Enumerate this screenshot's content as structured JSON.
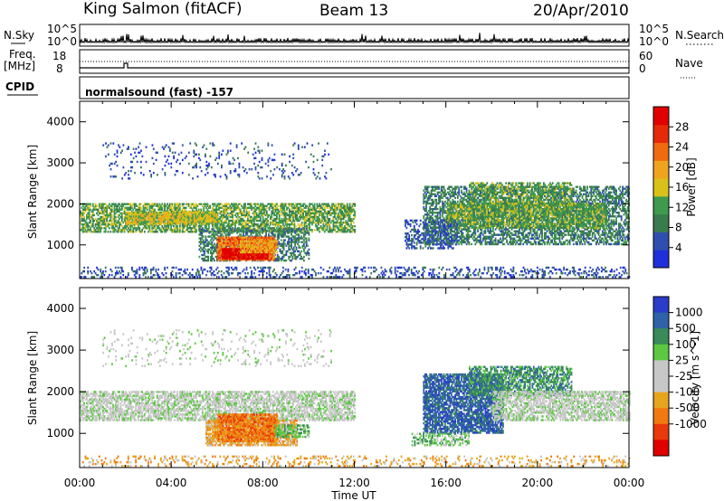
{
  "header": {
    "station": "King Salmon (fitACF)",
    "beam": "Beam 13",
    "date": "20/Apr/2010"
  },
  "top_panels": {
    "nsky_label": "N.Sky",
    "nsky_ticks": [
      "10^5",
      "10^0"
    ],
    "nsearch_label": "N.Search",
    "nsearch_ticks": [
      "10^5",
      "10^0"
    ],
    "freq_label": "Freq.",
    "freq_unit": "[MHz]",
    "freq_ticks": [
      "18",
      "8"
    ],
    "nave_label": "Nave",
    "nave_ticks": [
      "60",
      "0"
    ],
    "cpid_label": "CPID",
    "cpid_text": "normalsound (fast) -157"
  },
  "colors": {
    "power_scale": [
      "#1f2fd9",
      "#2f4fb0",
      "#3a7a4f",
      "#3f9a4e",
      "#d8c21a",
      "#f0a41e",
      "#f06a10",
      "#e52a0a",
      "#e00000"
    ],
    "velocity_scale": [
      "#2a3cc8",
      "#2f62a8",
      "#3a8a5a",
      "#5cc842",
      "#c7c7c7",
      "#c7c7c7",
      "#e7a51e",
      "#f07a10",
      "#e83a0a",
      "#e00000"
    ]
  },
  "chart_data": [
    {
      "type": "heatmap",
      "title": "Power",
      "xlabel": "Time UT",
      "ylabel": "Slant Range [km]",
      "x_ticks": [
        "00:00",
        "04:00",
        "08:00",
        "12:00",
        "16:00",
        "20:00",
        "00:00"
      ],
      "xlim_hours": [
        0,
        24
      ],
      "y_ticks": [
        1000,
        2000,
        3000,
        4000
      ],
      "ylim": [
        180,
        4500
      ],
      "colorbar": {
        "label": "Power [dB]",
        "ticks": [
          4,
          8,
          12,
          16,
          20,
          24,
          28
        ],
        "range": [
          0,
          32
        ]
      },
      "regions": [
        {
          "t0": 0.0,
          "t1": 12.0,
          "r0": 1300,
          "r1": 2000,
          "dens": 0.65,
          "lev": 3
        },
        {
          "t0": 2.0,
          "t1": 6.0,
          "r0": 1500,
          "r1": 1800,
          "dens": 0.8,
          "lev": 4
        },
        {
          "t0": 5.2,
          "t1": 10.0,
          "r0": 600,
          "r1": 1400,
          "dens": 0.5,
          "lev": 2
        },
        {
          "t0": 6.0,
          "t1": 8.5,
          "r0": 620,
          "r1": 1200,
          "dens": 0.9,
          "lev": 6
        },
        {
          "t0": 6.2,
          "t1": 8.2,
          "r0": 650,
          "r1": 900,
          "dens": 0.95,
          "lev": 8
        },
        {
          "t0": 7.0,
          "t1": 8.6,
          "r0": 800,
          "r1": 1100,
          "dens": 0.8,
          "lev": 5
        },
        {
          "t0": 1.0,
          "t1": 11.0,
          "r0": 2600,
          "r1": 3500,
          "dens": 0.08,
          "lev": 1
        },
        {
          "t0": 15.0,
          "t1": 24.0,
          "r0": 1000,
          "r1": 2400,
          "dens": 0.55,
          "lev": 2
        },
        {
          "t0": 16.0,
          "t1": 23.0,
          "r0": 1400,
          "r1": 2000,
          "dens": 0.75,
          "lev": 3
        },
        {
          "t0": 17.0,
          "t1": 21.5,
          "r0": 1900,
          "r1": 2500,
          "dens": 0.5,
          "lev": 3
        },
        {
          "t0": 14.2,
          "t1": 16.5,
          "r0": 900,
          "r1": 1600,
          "dens": 0.45,
          "lev": 1
        },
        {
          "t0": 0.0,
          "t1": 24.0,
          "r0": 200,
          "r1": 450,
          "dens": 0.25,
          "lev": 1
        }
      ]
    },
    {
      "type": "heatmap",
      "title": "Velocity",
      "xlabel": "Time UT",
      "ylabel": "Slant Range [km]",
      "x_ticks": [
        "00:00",
        "04:00",
        "08:00",
        "12:00",
        "16:00",
        "20:00",
        "00:00"
      ],
      "xlim_hours": [
        0,
        24
      ],
      "y_ticks": [
        1000,
        2000,
        3000,
        4000
      ],
      "ylim": [
        180,
        4500
      ],
      "colorbar": {
        "label": "Velocity [m s^-1]",
        "ticks": [
          "1000",
          "500",
          "100",
          "25",
          "-25",
          "-100",
          "-500",
          "-1000"
        ]
      },
      "regions": [
        {
          "t0": 0.0,
          "t1": 12.0,
          "r0": 1300,
          "r1": 2000,
          "dens": 0.65,
          "lev": 4
        },
        {
          "t0": 5.5,
          "t1": 9.5,
          "r0": 700,
          "r1": 1300,
          "dens": 0.75,
          "lev": 6
        },
        {
          "t0": 6.0,
          "t1": 8.6,
          "r0": 800,
          "r1": 1450,
          "dens": 0.85,
          "lev": 7
        },
        {
          "t0": 8.5,
          "t1": 10.0,
          "r0": 900,
          "r1": 1200,
          "dens": 0.6,
          "lev": 3
        },
        {
          "t0": 1.0,
          "t1": 11.0,
          "r0": 2600,
          "r1": 3500,
          "dens": 0.08,
          "lev": 4
        },
        {
          "t0": 15.0,
          "t1": 18.5,
          "r0": 1000,
          "r1": 2400,
          "dens": 0.75,
          "lev": 1
        },
        {
          "t0": 17.0,
          "t1": 21.5,
          "r0": 1900,
          "r1": 2600,
          "dens": 0.6,
          "lev": 2
        },
        {
          "t0": 18.0,
          "t1": 24.0,
          "r0": 1300,
          "r1": 2000,
          "dens": 0.65,
          "lev": 4
        },
        {
          "t0": 14.5,
          "t1": 17.0,
          "r0": 700,
          "r1": 1000,
          "dens": 0.5,
          "lev": 3
        },
        {
          "t0": 0.0,
          "t1": 24.0,
          "r0": 200,
          "r1": 450,
          "dens": 0.2,
          "lev": 6
        }
      ]
    }
  ]
}
